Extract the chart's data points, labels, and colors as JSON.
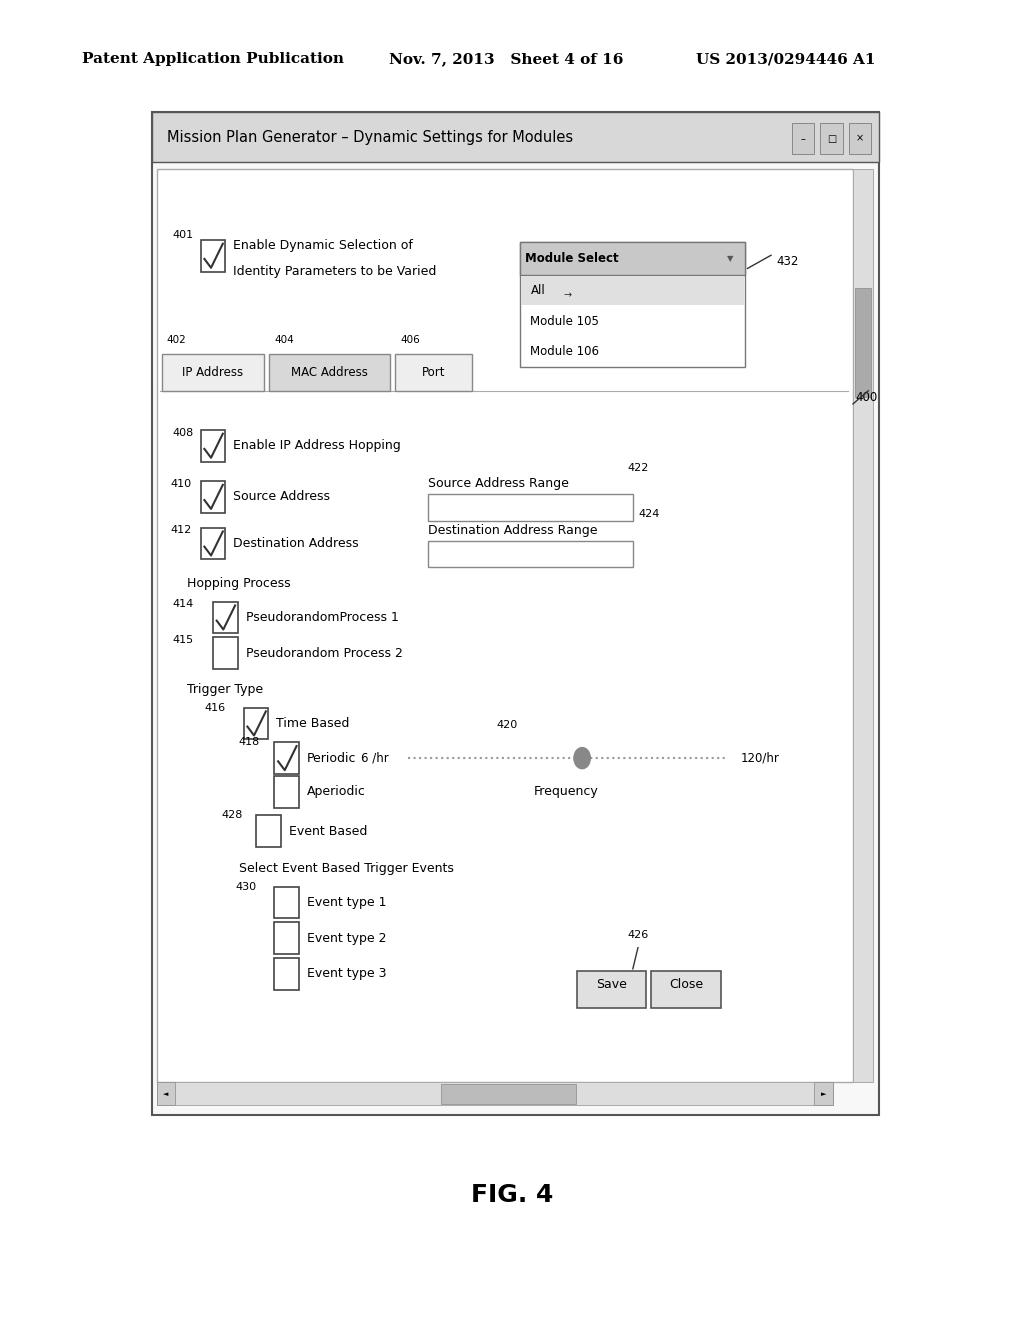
{
  "header_left": "Patent Application Publication",
  "header_mid": "Nov. 7, 2013   Sheet 4 of 16",
  "header_right": "US 2013/0294446 A1",
  "fig_label": "FIG. 4",
  "window_title": "Mission Plan Generator – Dynamic Settings for Modules",
  "bg_color": "#ffffff",
  "tab_labels": [
    "IP Address",
    "MAC Address",
    "Port"
  ],
  "tab_refs": [
    "402",
    "404",
    "406"
  ]
}
